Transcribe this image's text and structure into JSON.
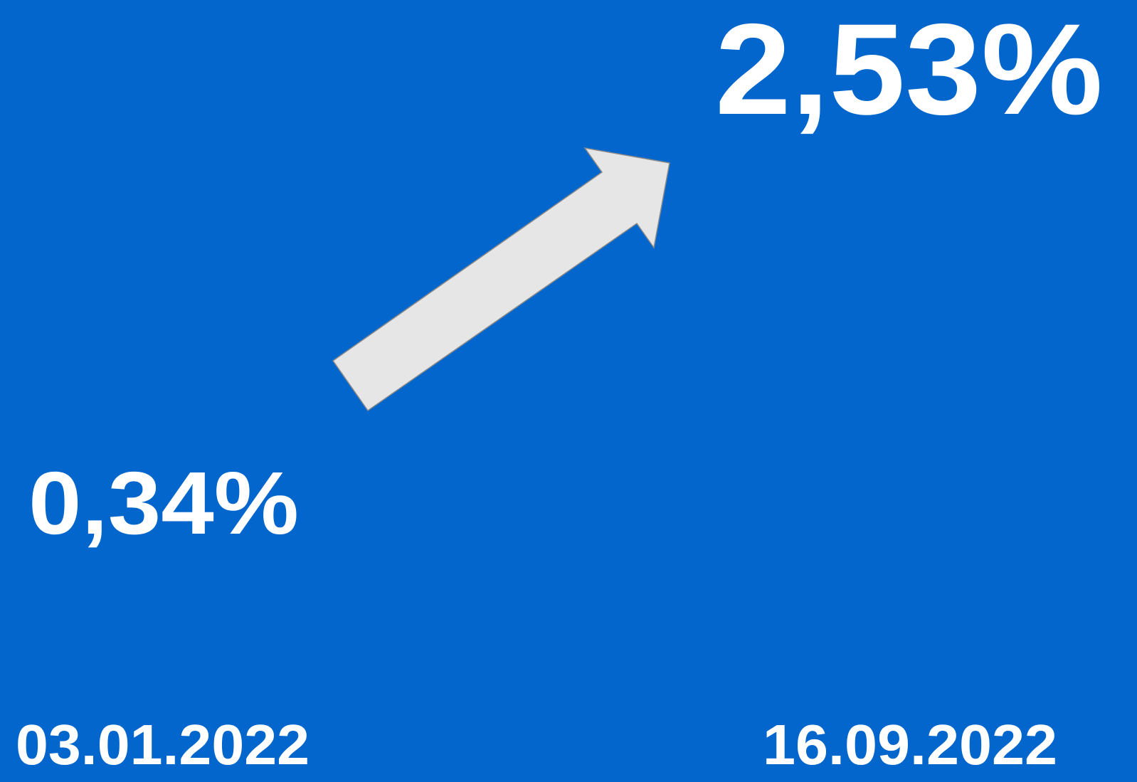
{
  "headline": {
    "end_value": "2,53%",
    "start_value": "0,34%"
  },
  "dates": {
    "start": "03.01.2022",
    "end": "16.09.2022"
  }
}
